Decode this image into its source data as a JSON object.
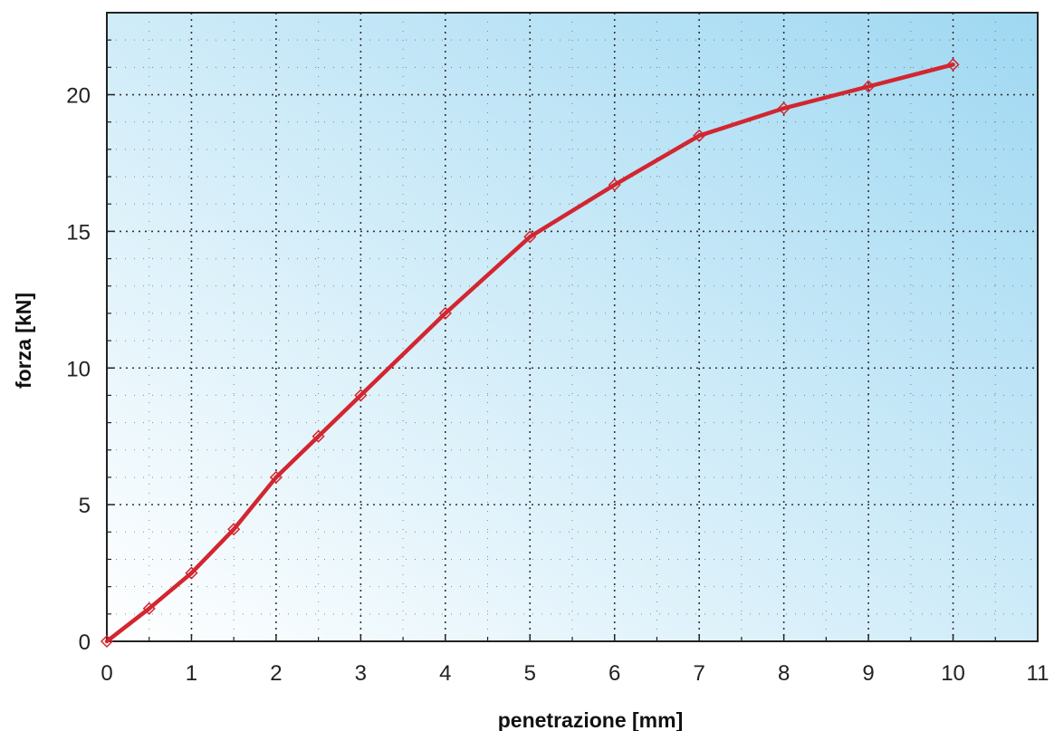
{
  "chart_data": {
    "type": "line",
    "title": "",
    "xlabel": "penetrazione [mm]",
    "ylabel": "forza [kN]",
    "xlim": [
      0,
      11
    ],
    "ylim": [
      0,
      23
    ],
    "xticks": [
      0,
      1,
      2,
      3,
      4,
      5,
      6,
      7,
      8,
      9,
      10,
      11
    ],
    "yticks": [
      0,
      5,
      10,
      15,
      20
    ],
    "grid": true,
    "legend": "none",
    "series": [
      {
        "color": "#d22630",
        "marker": "diamond",
        "x": [
          0,
          0.5,
          1,
          1.5,
          2,
          2.5,
          3,
          4,
          5,
          6,
          7,
          8,
          9,
          10
        ],
        "y": [
          0,
          1.2,
          2.5,
          4.1,
          6.0,
          7.5,
          9.0,
          12.0,
          14.8,
          16.7,
          18.5,
          19.5,
          20.3,
          21.1
        ]
      }
    ]
  },
  "colors": {
    "background_start": "#ffffff",
    "background_end": "#9fd8f2",
    "grid": "#333333",
    "line": "#d22630"
  }
}
